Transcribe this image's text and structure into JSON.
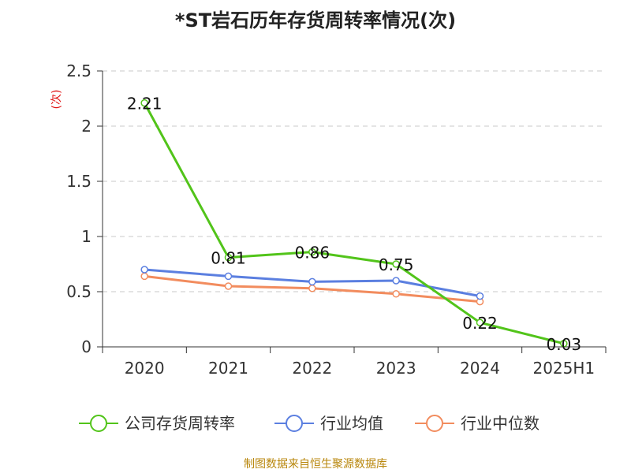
{
  "chart_data": {
    "type": "line",
    "title": "*ST岩石历年存货周转率情况(次)",
    "ylabel": "(次)",
    "categories": [
      "2020",
      "2021",
      "2022",
      "2023",
      "2024",
      "2025H1"
    ],
    "ylim": [
      0,
      2.5
    ],
    "yticks": [
      "0",
      "0.5",
      "1",
      "1.5",
      "2",
      "2.5"
    ],
    "grid": true,
    "legend_position": "bottom",
    "series": [
      {
        "name": "公司存货周转率",
        "color": "#52c41a",
        "values": [
          2.21,
          0.81,
          0.86,
          0.75,
          0.22,
          0.03
        ],
        "labels": [
          "2.21",
          "0.81",
          "0.86",
          "0.75",
          "0.22",
          "0.03"
        ]
      },
      {
        "name": "行业均值",
        "color": "#5b7fe0",
        "values": [
          0.7,
          0.64,
          0.59,
          0.6,
          0.46,
          null
        ]
      },
      {
        "name": "行业中位数",
        "color": "#f28c5e",
        "values": [
          0.64,
          0.55,
          0.53,
          0.48,
          0.41,
          null
        ]
      }
    ]
  },
  "source_note": "制图数据来自恒生聚源数据库"
}
